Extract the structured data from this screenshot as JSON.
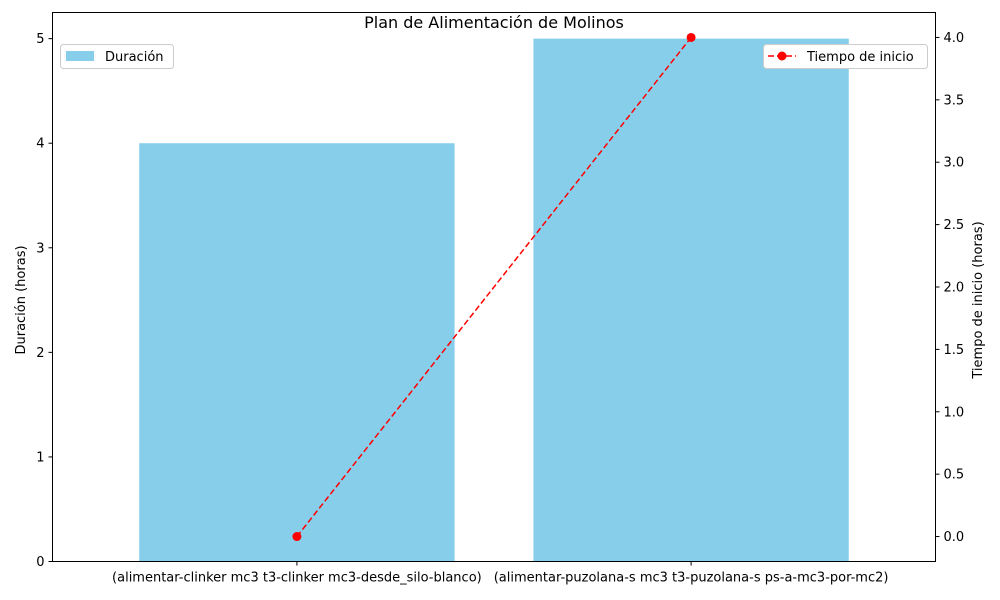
{
  "chart_data": {
    "type": "bar",
    "title": "Plan de Alimentación de Molinos",
    "categories": [
      "(alimentar-clinker mc3 t3-clinker mc3-desde_silo-blanco)",
      "(alimentar-puzolana-s mc3 t3-puzolana-s ps-a-mc3-por-mc2)"
    ],
    "series": [
      {
        "name": "Duración",
        "type": "bar",
        "axis": "left",
        "values": [
          4,
          5
        ],
        "color": "#87ceeb"
      },
      {
        "name": "Tiempo de inicio",
        "type": "line",
        "axis": "right",
        "values": [
          0,
          4
        ],
        "color": "#ff0000",
        "line_style": "dashed",
        "marker": "circle"
      }
    ],
    "ylabel": "Duración (horas)",
    "ylabel_right": "Tiempo de inicio (horas)",
    "ylim": [
      0,
      5.25
    ],
    "ylim_right": [
      -0.2,
      4.2
    ],
    "yticks": [
      0,
      1,
      2,
      3,
      4,
      5
    ],
    "yticks_right": [
      0.0,
      0.5,
      1.0,
      1.5,
      2.0,
      2.5,
      3.0,
      3.5,
      4.0
    ],
    "grid": false,
    "legend_left_placement": "upper-left",
    "legend_right_placement": "upper-right"
  }
}
